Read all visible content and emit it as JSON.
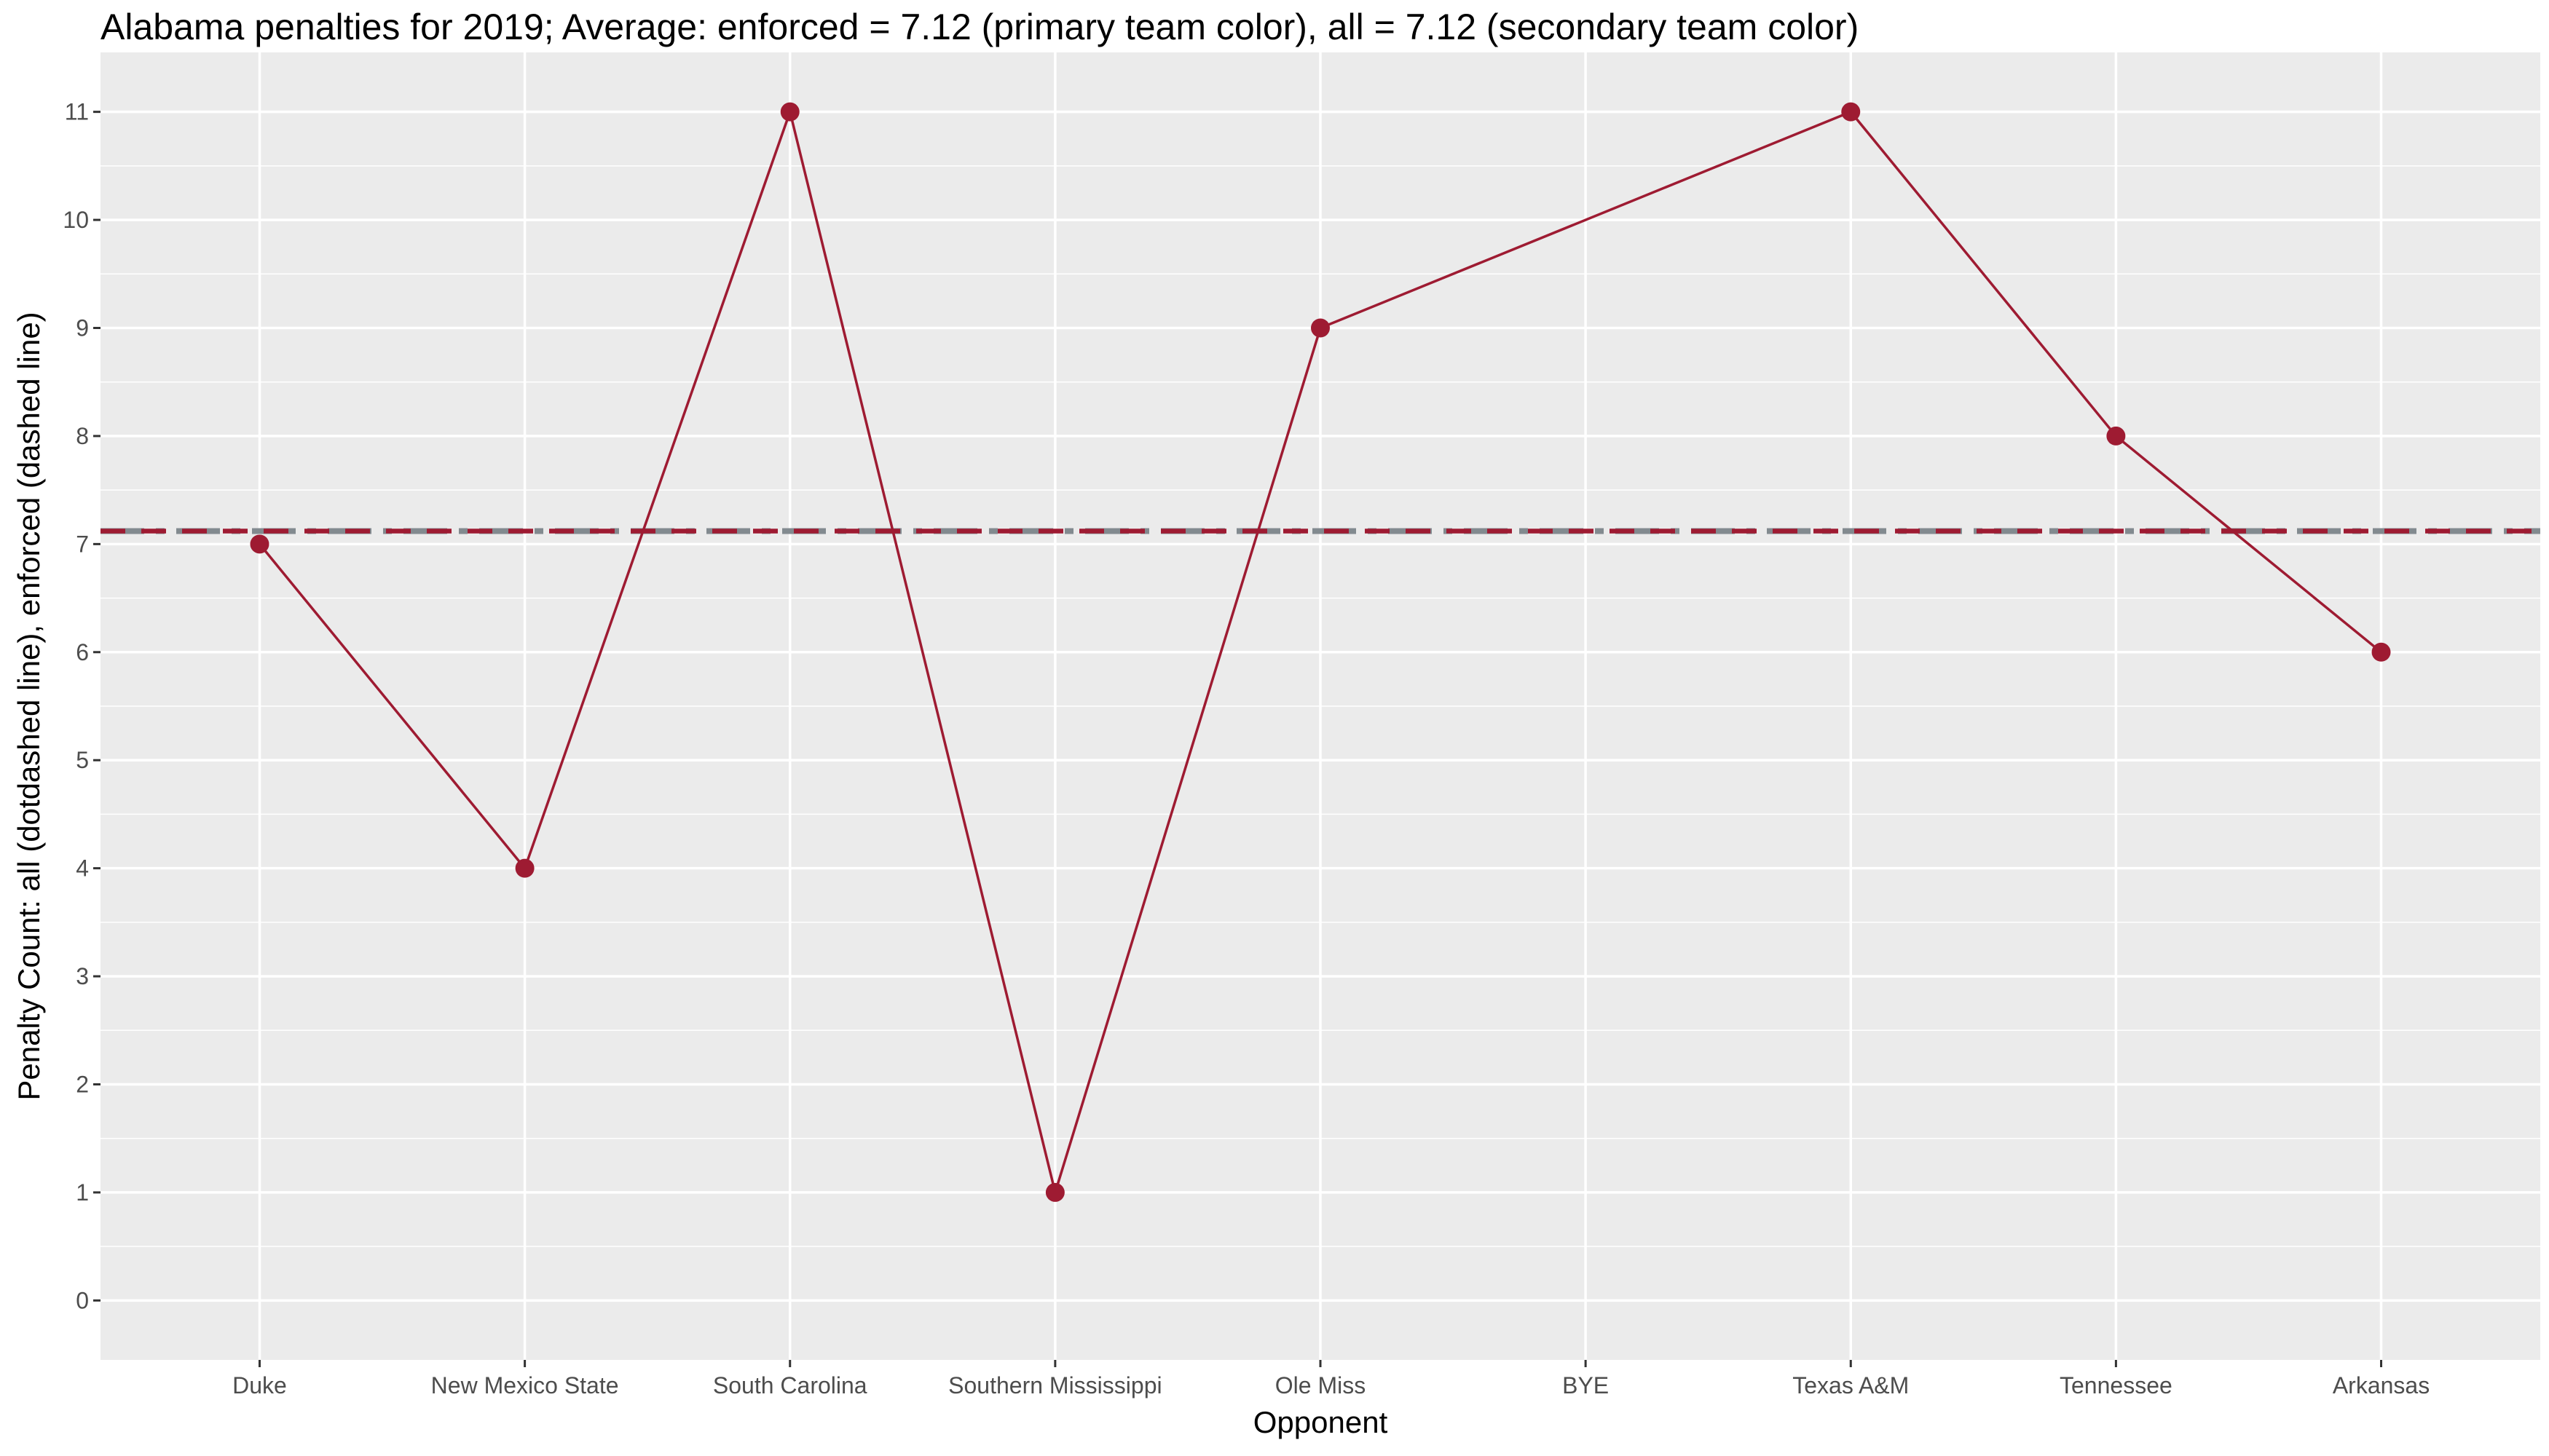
{
  "chart_data": {
    "type": "line",
    "title": "Alabama penalties for 2019; Average: enforced = 7.12 (primary team color), all = 7.12 (secondary team color)",
    "xlabel": "Opponent",
    "ylabel": "Penalty Count: all (dotdashed line), enforced (dashed line)",
    "categories": [
      "Duke",
      "New Mexico State",
      "South Carolina",
      "Southern Mississippi",
      "Ole Miss",
      "BYE",
      "Texas A&M",
      "Tennessee",
      "Arkansas"
    ],
    "series": [
      {
        "name": "enforced",
        "values": [
          7,
          4,
          11,
          1,
          9,
          null,
          11,
          8,
          6
        ]
      }
    ],
    "averages": {
      "enforced": 7.12,
      "all": 7.12
    },
    "ylim": [
      -0.55,
      11.55
    ],
    "yticks": [
      0,
      1,
      2,
      3,
      4,
      5,
      6,
      7,
      8,
      9,
      10,
      11
    ],
    "grid": true,
    "colors": {
      "primary": "#9E1B32",
      "secondary": "#828A8F",
      "panel": "#EBEBEB",
      "grid": "#FFFFFF"
    }
  }
}
